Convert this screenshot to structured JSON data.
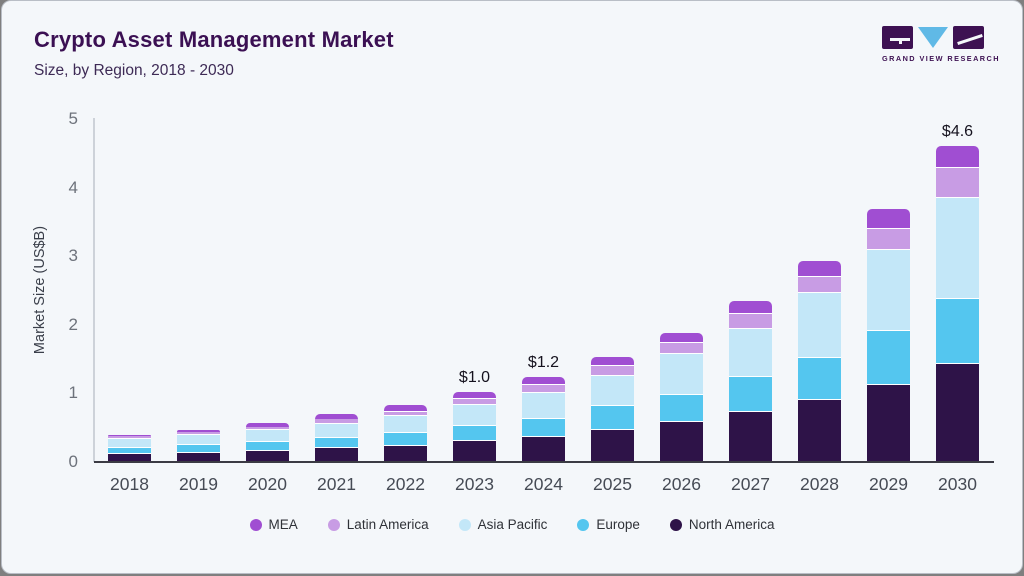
{
  "header": {
    "title": "Crypto Asset Management Market",
    "subtitle": "Size, by Region, 2018 - 2030"
  },
  "logo": {
    "brand": "GRAND VIEW RESEARCH",
    "block_color": "#3d1152",
    "triangle_color": "#60b9e6"
  },
  "chart_data": {
    "type": "bar",
    "stacked": true,
    "title": "Crypto Asset Management Market",
    "subtitle": "Size, by Region, 2018 - 2030",
    "xlabel": "",
    "ylabel": "Market Size (US$B)",
    "ylim": [
      0,
      5
    ],
    "yticks": [
      0,
      1,
      2,
      3,
      4,
      5
    ],
    "grid": false,
    "legend_position": "bottom",
    "categories": [
      "2018",
      "2019",
      "2020",
      "2021",
      "2022",
      "2023",
      "2024",
      "2025",
      "2026",
      "2027",
      "2028",
      "2029",
      "2030"
    ],
    "series": [
      {
        "name": "North America",
        "color": "#2e1348",
        "values": [
          0.11,
          0.13,
          0.16,
          0.2,
          0.24,
          0.3,
          0.36,
          0.46,
          0.58,
          0.73,
          0.9,
          1.12,
          1.43
        ]
      },
      {
        "name": "Europe",
        "color": "#54c6ef",
        "values": [
          0.1,
          0.12,
          0.13,
          0.15,
          0.18,
          0.22,
          0.27,
          0.35,
          0.4,
          0.51,
          0.62,
          0.79,
          0.95
        ]
      },
      {
        "name": "Asia Pacific",
        "color": "#c3e7f8",
        "values": [
          0.12,
          0.14,
          0.17,
          0.21,
          0.25,
          0.31,
          0.38,
          0.45,
          0.6,
          0.7,
          0.94,
          1.18,
          1.47
        ]
      },
      {
        "name": "Latin America",
        "color": "#c89ce4",
        "values": [
          0.03,
          0.03,
          0.04,
          0.05,
          0.06,
          0.09,
          0.11,
          0.14,
          0.15,
          0.22,
          0.24,
          0.31,
          0.43
        ]
      },
      {
        "name": "MEA",
        "color": "#a04ed2",
        "values": [
          0.02,
          0.04,
          0.05,
          0.07,
          0.08,
          0.08,
          0.1,
          0.12,
          0.14,
          0.17,
          0.21,
          0.27,
          0.32
        ]
      }
    ],
    "totals": [
      0.38,
      0.46,
      0.55,
      0.68,
      0.81,
      1.0,
      1.22,
      1.52,
      1.87,
      2.33,
      2.91,
      3.67,
      4.6
    ],
    "bar_labels": [
      "",
      "",
      "",
      "",
      "",
      "$1.0",
      "$1.2",
      "",
      "",
      "",
      "",
      "",
      "$4.6"
    ],
    "legend": [
      {
        "label": "MEA",
        "color": "#a04ed2"
      },
      {
        "label": "Latin America",
        "color": "#c89ce4"
      },
      {
        "label": "Asia Pacific",
        "color": "#c3e7f8"
      },
      {
        "label": "Europe",
        "color": "#54c6ef"
      },
      {
        "label": "North America",
        "color": "#2e1348"
      }
    ]
  },
  "colors": {
    "background": "#f4f7fa",
    "title": "#3b1053",
    "subtitle": "#3d2a55",
    "axis_line_x": "#3b3b44",
    "axis_line_y": "#cdd2d9",
    "tick_label": "#6d727b",
    "x_label": "#464b55",
    "value_label": "#15121e"
  }
}
